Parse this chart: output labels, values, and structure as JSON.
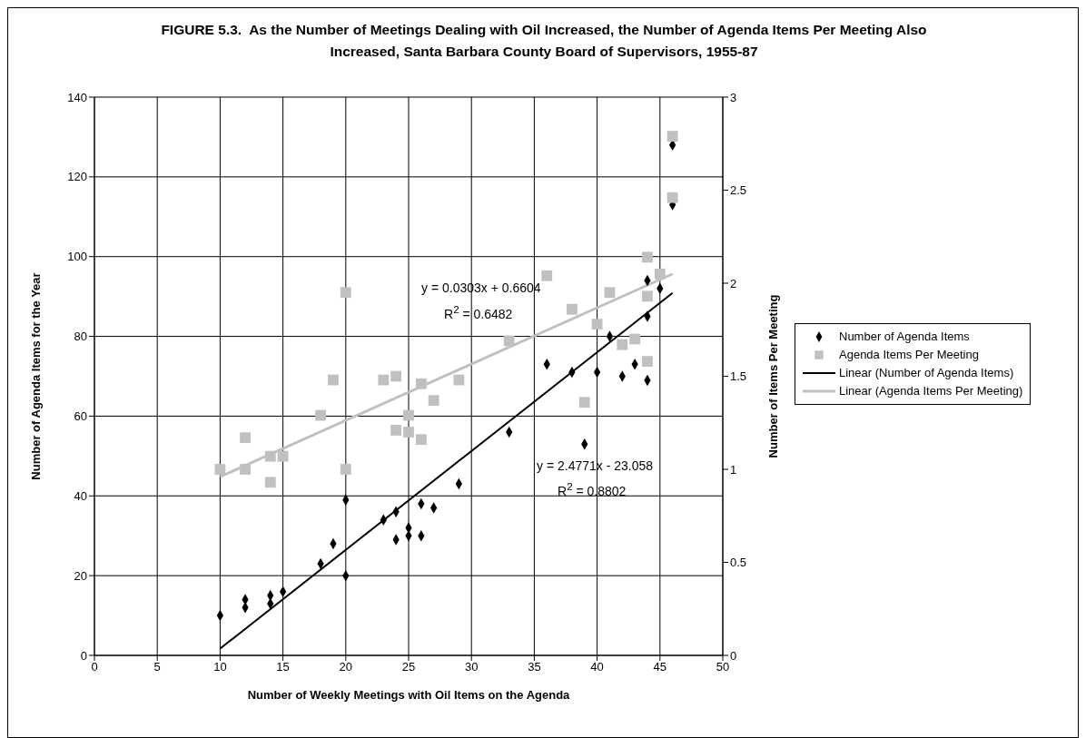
{
  "chart_data": {
    "type": "scatter",
    "title": "FIGURE 5.3.  As the Number of Meetings Dealing with Oil Increased, the Number of Agenda Items Per Meeting Also Increased, Santa Barbara County Board of Supervisors, 1955-87",
    "xlabel": "Number of Weekly Meetings with Oil Items on the Agenda",
    "ylabel": "Number of Agenda Items for the Year",
    "y2label": "Number of Items Per Meeting",
    "xlim": [
      0,
      50
    ],
    "xticks": [
      0,
      5,
      10,
      15,
      20,
      25,
      30,
      35,
      40,
      45,
      50
    ],
    "ylim": [
      0,
      140
    ],
    "yticks": [
      0,
      20,
      40,
      60,
      80,
      100,
      120,
      140
    ],
    "y2lim": [
      0,
      3
    ],
    "y2ticks": [
      0,
      0.5,
      1,
      1.5,
      2,
      2.5,
      3
    ],
    "grid": true,
    "legend": "right",
    "annotations": [
      "y = 0.0303x + 0.6604",
      "R$^{2}$ = 0.6482",
      "y = 2.4771x - 23.058",
      "R$^{2}$ = 0.8802"
    ],
    "series": [
      {
        "name": "Number of Agenda Items",
        "marker": "diamond",
        "color": "#000000",
        "x": [
          10,
          12,
          12,
          14,
          14,
          15,
          18,
          19,
          20,
          20,
          23,
          24,
          24,
          25,
          25,
          26,
          26,
          27,
          29,
          33,
          36,
          38,
          39,
          40,
          41,
          42,
          43,
          44,
          44,
          44,
          45,
          46,
          46
        ],
        "values": [
          10,
          14,
          12,
          15,
          13,
          16,
          23,
          28,
          39,
          20,
          34,
          36,
          29,
          32,
          30,
          38,
          30,
          37,
          43,
          56,
          73,
          71,
          53,
          71,
          80,
          70,
          73,
          94,
          85,
          69,
          92,
          128,
          113
        ]
      },
      {
        "name": "Agenda Items Per Meeting",
        "marker": "square",
        "color": "#c0c0c0",
        "axis": "y2",
        "x": [
          10,
          12,
          12,
          14,
          14,
          15,
          18,
          19,
          20,
          20,
          23,
          24,
          24,
          25,
          25,
          26,
          26,
          27,
          29,
          33,
          36,
          38,
          39,
          40,
          41,
          42,
          43,
          44,
          44,
          44,
          45,
          46,
          46
        ],
        "values": [
          1.0,
          1.17,
          1.0,
          1.07,
          0.93,
          1.07,
          1.29,
          1.48,
          1.95,
          1.0,
          1.48,
          1.5,
          1.21,
          1.29,
          1.2,
          1.46,
          1.16,
          1.37,
          1.48,
          1.69,
          2.04,
          1.86,
          1.36,
          1.78,
          1.95,
          1.67,
          1.7,
          2.14,
          1.93,
          1.58,
          2.05,
          2.79,
          2.46
        ]
      },
      {
        "name": "Linear (Number of Agenda Items)",
        "type": "line",
        "marker": "none",
        "color": "#000000",
        "x": [
          10,
          46
        ],
        "values": [
          1.7,
          90.9
        ]
      },
      {
        "name": "Linear (Agenda Items Per Meeting)",
        "type": "line",
        "marker": "none",
        "color": "#c0c0c0",
        "axis": "y2",
        "x": [
          10,
          46
        ],
        "values": [
          0.96,
          2.05
        ]
      }
    ]
  }
}
